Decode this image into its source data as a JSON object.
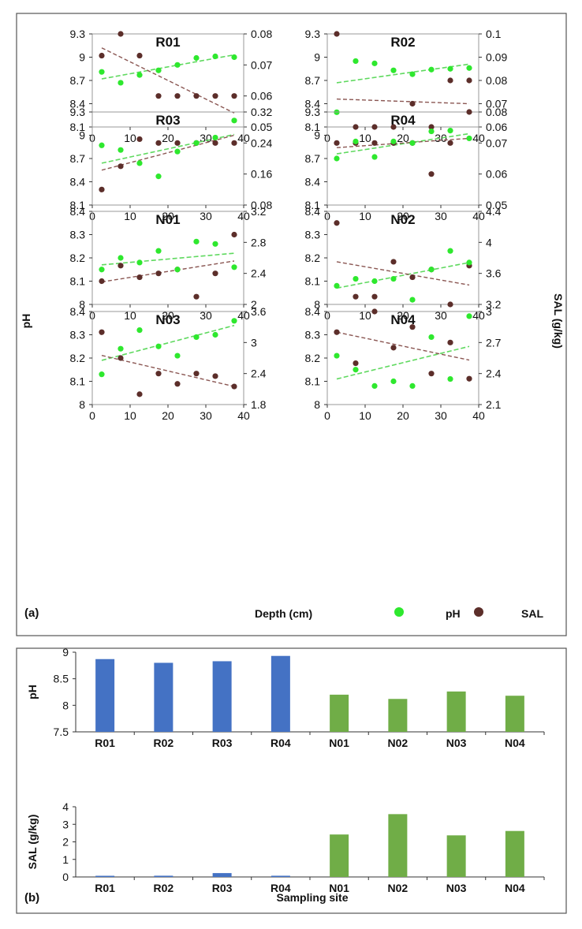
{
  "colors": {
    "ph": "#2ee82e",
    "sal": "#5c2e2a",
    "ph_trend": "#5fd95f",
    "sal_trend": "#8a5652",
    "bar_r": "#4472c4",
    "bar_n": "#70ad47",
    "frame": "#555555"
  },
  "panel_a": {
    "label": "(a)",
    "y_left_label": "pH",
    "y_right_label": "SAL (g/kg)",
    "x_label": "Depth (cm)",
    "legend_ph": "pH",
    "legend_sal": "SAL"
  },
  "panel_b": {
    "label": "(b)",
    "x_label": "Sampling site"
  },
  "chart_data": [
    {
      "type": "scatter",
      "title": "R01",
      "x": [
        2.5,
        7.5,
        12.5,
        17.5,
        22.5,
        27.5,
        32.5,
        37.5
      ],
      "ph": [
        8.81,
        8.67,
        8.77,
        8.83,
        8.9,
        8.99,
        9.01,
        9.0
      ],
      "sal": [
        0.073,
        0.08,
        0.073,
        0.06,
        0.06,
        0.06,
        0.06,
        0.06
      ],
      "ph_lim": [
        8.1,
        9.3
      ],
      "ph_ticks": [
        "8.1",
        "8.4",
        "8.7",
        "9",
        "9.3"
      ],
      "sal_lim": [
        0.05,
        0.08
      ],
      "sal_ticks": [
        "0.05",
        "0.06",
        "0.07",
        "0.08"
      ],
      "xlim": [
        0,
        40
      ],
      "x_ticks": [
        "0",
        "10",
        "20",
        "30",
        "40"
      ],
      "ph_trend": [
        8.72,
        9.03
      ],
      "sal_trend": [
        0.0755,
        0.0545
      ]
    },
    {
      "type": "scatter",
      "title": "R02",
      "x": [
        2.5,
        7.5,
        12.5,
        17.5,
        22.5,
        27.5,
        32.5,
        37.5
      ],
      "ph": [
        8.29,
        8.95,
        8.92,
        8.83,
        8.78,
        8.84,
        8.85,
        8.86
      ],
      "sal": [
        0.1,
        0.06,
        0.06,
        0.06,
        0.07,
        0.06,
        0.08,
        0.08
      ],
      "ph_lim": [
        8.1,
        9.3
      ],
      "ph_ticks": [
        "8.1",
        "8.4",
        "8.7",
        "9",
        "9.3"
      ],
      "sal_lim": [
        0.06,
        0.1
      ],
      "sal_ticks": [
        "0.06",
        "0.07",
        "0.08",
        "0.09",
        "0.1"
      ],
      "xlim": [
        0,
        40
      ],
      "x_ticks": [
        "0",
        "10",
        "20",
        "30",
        "40"
      ],
      "ph_trend": [
        8.67,
        8.91
      ],
      "sal_trend": [
        0.072,
        0.07
      ]
    },
    {
      "type": "scatter",
      "title": "R03",
      "x": [
        2.5,
        7.5,
        12.5,
        17.5,
        22.5,
        27.5,
        32.5,
        37.5
      ],
      "ph": [
        8.87,
        8.81,
        8.64,
        8.47,
        8.79,
        8.9,
        8.97,
        9.19
      ],
      "sal": [
        0.12,
        0.18,
        0.25,
        0.24,
        0.24,
        0.24,
        0.24,
        0.24
      ],
      "ph_lim": [
        8.1,
        9.3
      ],
      "ph_ticks": [
        "8.1",
        "8.4",
        "8.7",
        "9",
        "9.3"
      ],
      "sal_lim": [
        0.08,
        0.32
      ],
      "sal_ticks": [
        "0.08",
        "0.16",
        "0.24",
        "0.32"
      ],
      "xlim": [
        0,
        40
      ],
      "x_ticks": [
        "0",
        "10",
        "20",
        "30",
        "40"
      ],
      "ph_trend": [
        8.64,
        9.01
      ],
      "sal_trend": [
        0.17,
        0.26
      ]
    },
    {
      "type": "scatter",
      "title": "R04",
      "x": [
        2.5,
        7.5,
        12.5,
        17.5,
        22.5,
        27.5,
        32.5,
        37.5
      ],
      "ph": [
        8.7,
        8.92,
        8.72,
        8.92,
        8.9,
        9.05,
        9.06,
        8.96
      ],
      "sal": [
        0.07,
        0.07,
        0.07,
        0.07,
        0.07,
        0.06,
        0.07,
        0.08
      ],
      "ph_lim": [
        8.1,
        9.3
      ],
      "ph_ticks": [
        "8.1",
        "8.4",
        "8.7",
        "9",
        "9.3"
      ],
      "sal_lim": [
        0.05,
        0.08
      ],
      "sal_ticks": [
        "0.05",
        "0.06",
        "0.07",
        "0.08"
      ],
      "xlim": [
        0,
        40
      ],
      "x_ticks": [
        "0",
        "10",
        "20",
        "30",
        "40"
      ],
      "ph_trend": [
        8.76,
        9.02
      ],
      "sal_trend": [
        0.0685,
        0.0715
      ]
    },
    {
      "type": "scatter",
      "title": "N01",
      "x": [
        2.5,
        7.5,
        12.5,
        17.5,
        22.5,
        27.5,
        32.5,
        37.5
      ],
      "ph": [
        8.15,
        8.2,
        8.18,
        8.23,
        8.15,
        8.27,
        8.26,
        8.16
      ],
      "sal": [
        2.3,
        2.5,
        2.35,
        2.4,
        2.45,
        2.1,
        2.4,
        2.9
      ],
      "ph_lim": [
        8.0,
        8.4
      ],
      "ph_ticks": [
        "8",
        "8.1",
        "8.2",
        "8.3",
        "8.4"
      ],
      "sal_lim": [
        2.0,
        3.2
      ],
      "sal_ticks": [
        "2",
        "2.4",
        "2.8",
        "3.2"
      ],
      "xlim": [
        0,
        40
      ],
      "x_ticks": [
        "0",
        "10",
        "20",
        "30",
        "40"
      ],
      "ph_trend": [
        8.17,
        8.22
      ],
      "sal_trend": [
        2.29,
        2.56
      ]
    },
    {
      "type": "scatter",
      "title": "N02",
      "x": [
        2.5,
        7.5,
        12.5,
        17.5,
        22.5,
        27.5,
        32.5,
        37.5
      ],
      "ph": [
        8.08,
        8.11,
        8.1,
        8.11,
        8.02,
        8.15,
        8.23,
        8.18
      ],
      "sal": [
        4.25,
        3.3,
        3.3,
        3.75,
        3.55,
        3.65,
        3.2,
        3.7
      ],
      "ph_lim": [
        8.0,
        8.4
      ],
      "ph_ticks": [
        "8",
        "8.1",
        "8.2",
        "8.3",
        "8.4"
      ],
      "sal_lim": [
        3.2,
        4.4
      ],
      "sal_ticks": [
        "3.2",
        "3.6",
        "4",
        "4.4"
      ],
      "xlim": [
        0,
        40
      ],
      "x_ticks": [
        "0",
        "10",
        "20",
        "30",
        "40"
      ],
      "ph_trend": [
        8.07,
        8.18
      ],
      "sal_trend": [
        3.75,
        3.45
      ]
    },
    {
      "type": "scatter",
      "title": "N03",
      "x": [
        2.5,
        7.5,
        12.5,
        17.5,
        22.5,
        27.5,
        32.5,
        37.5
      ],
      "ph": [
        8.13,
        8.24,
        8.32,
        8.25,
        8.21,
        8.29,
        8.3,
        8.36
      ],
      "sal": [
        3.2,
        2.7,
        2.0,
        2.4,
        2.2,
        2.4,
        2.35,
        2.15
      ],
      "ph_lim": [
        8.0,
        8.4
      ],
      "ph_ticks": [
        "8",
        "8.1",
        "8.2",
        "8.3",
        "8.4"
      ],
      "sal_lim": [
        1.8,
        3.6
      ],
      "sal_ticks": [
        "1.8",
        "2.4",
        "3",
        "3.6"
      ],
      "xlim": [
        0,
        40
      ],
      "x_ticks": [
        "0",
        "10",
        "20",
        "30",
        "40"
      ],
      "ph_trend": [
        8.19,
        8.34
      ],
      "sal_trend": [
        2.75,
        2.15
      ]
    },
    {
      "type": "scatter",
      "title": "N04",
      "x": [
        2.5,
        7.5,
        12.5,
        17.5,
        22.5,
        27.5,
        32.5,
        37.5
      ],
      "ph": [
        8.21,
        8.15,
        8.08,
        8.1,
        8.08,
        8.29,
        8.11,
        8.38
      ],
      "sal": [
        2.8,
        2.5,
        3.0,
        2.65,
        2.85,
        2.4,
        2.7,
        2.35
      ],
      "ph_lim": [
        8.0,
        8.4
      ],
      "ph_ticks": [
        "8",
        "8.1",
        "8.2",
        "8.3",
        "8.4"
      ],
      "sal_lim": [
        2.1,
        3.0
      ],
      "sal_ticks": [
        "2.1",
        "2.4",
        "2.7",
        "3"
      ],
      "xlim": [
        0,
        40
      ],
      "x_ticks": [
        "0",
        "10",
        "20",
        "30",
        "40"
      ],
      "ph_trend": [
        8.11,
        8.25
      ],
      "sal_trend": [
        2.8,
        2.53
      ]
    },
    {
      "type": "bar",
      "ylabel": "pH",
      "categories": [
        "R01",
        "R02",
        "R03",
        "R04",
        "N01",
        "N02",
        "N03",
        "N04"
      ],
      "values": [
        8.87,
        8.8,
        8.83,
        8.93,
        8.2,
        8.12,
        8.26,
        8.18
      ],
      "ylim": [
        7.5,
        9
      ],
      "y_ticks": [
        "7.5",
        "8",
        "8.5",
        "9"
      ]
    },
    {
      "type": "bar",
      "ylabel": "SAL (g/kg)",
      "categories": [
        "R01",
        "R02",
        "R03",
        "R04",
        "N01",
        "N02",
        "N03",
        "N04"
      ],
      "values": [
        0.066,
        0.07,
        0.22,
        0.069,
        2.42,
        3.58,
        2.37,
        2.62
      ],
      "ylim": [
        0,
        4
      ],
      "y_ticks": [
        "0",
        "1",
        "2",
        "3",
        "4"
      ]
    }
  ]
}
